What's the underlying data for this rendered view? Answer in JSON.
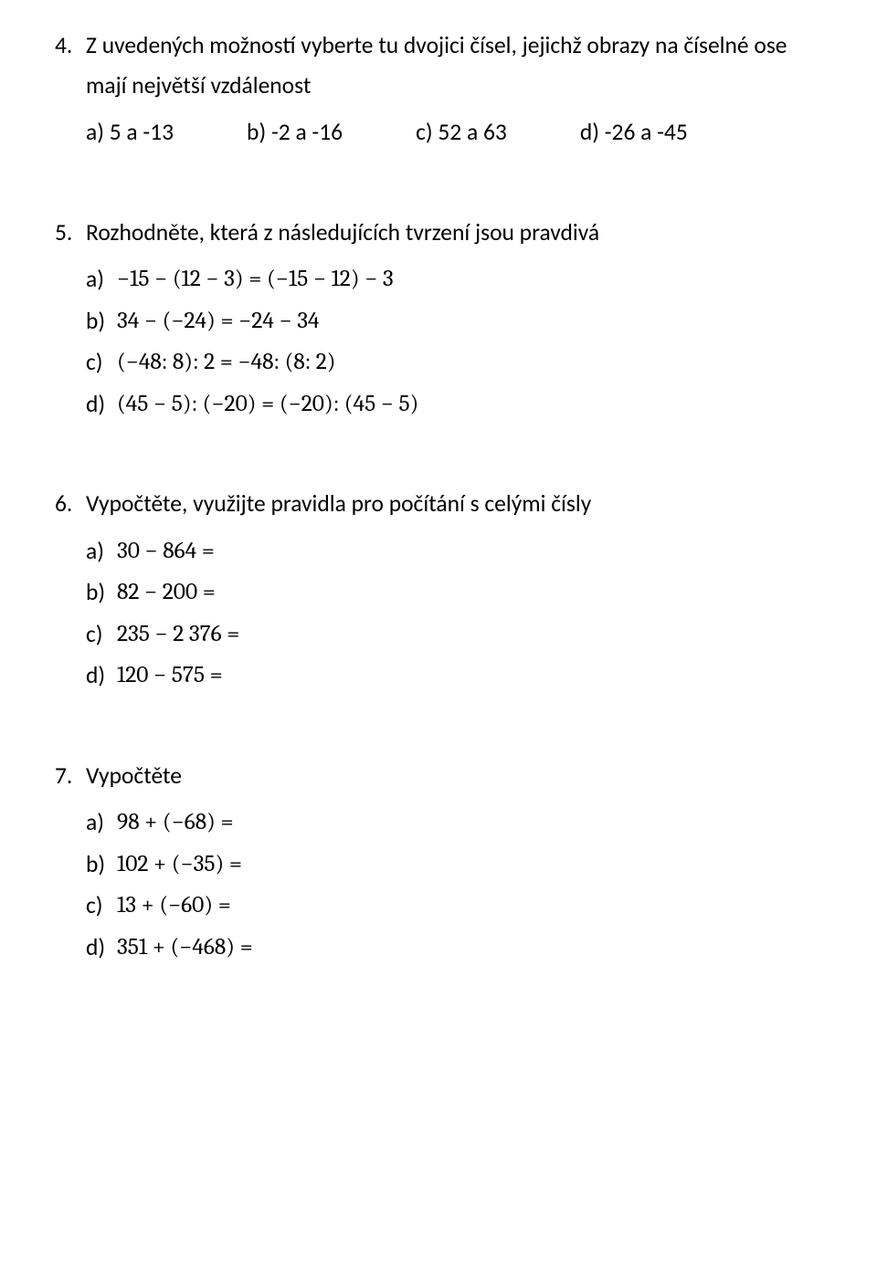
{
  "q4": {
    "number": "4.",
    "text_line1": "Z uvedených možností vyberte tu dvojici čísel, jejichž obrazy na číselné ose",
    "text_line2": "mají největší vzdálenost",
    "a": "a)  5 a -13",
    "b": "b)  -2 a -16",
    "c": "c)  52 a 63",
    "d": "d)  -26 a -45"
  },
  "q5": {
    "number": "5.",
    "text": "Rozhodněte, která z následujících tvrzení jsou pravdivá",
    "a_letter": "a)",
    "a_math": "−15 − (12 − 3) = (−15 − 12) − 3",
    "b_letter": "b)",
    "b_math": "34 − (−24) = −24 − 34",
    "c_letter": "c)",
    "c_math": "(−48: 8): 2 = −48: (8: 2)",
    "d_letter": "d)",
    "d_math": "(45 − 5): (−20) = (−20): (45 − 5)"
  },
  "q6": {
    "number": "6.",
    "text": "Vypočtěte, využijte pravidla pro počítání s celými čísly",
    "a_letter": "a)",
    "a_math": "30 − 864 =",
    "b_letter": "b)",
    "b_math": "82 − 200 =",
    "c_letter": "c)",
    "c_math": "235 − 2 376 =",
    "d_letter": "d)",
    "d_math": "120 − 575 ="
  },
  "q7": {
    "number": "7.",
    "text": "Vypočtěte",
    "a_letter": "a)",
    "a_math": "98 + (−68) =",
    "b_letter": "b)",
    "b_math": "102 + (−35) =",
    "c_letter": "c)",
    "c_math": "13 + (−60) =",
    "d_letter": "d)",
    "d_math": "351 + (−468) ="
  }
}
